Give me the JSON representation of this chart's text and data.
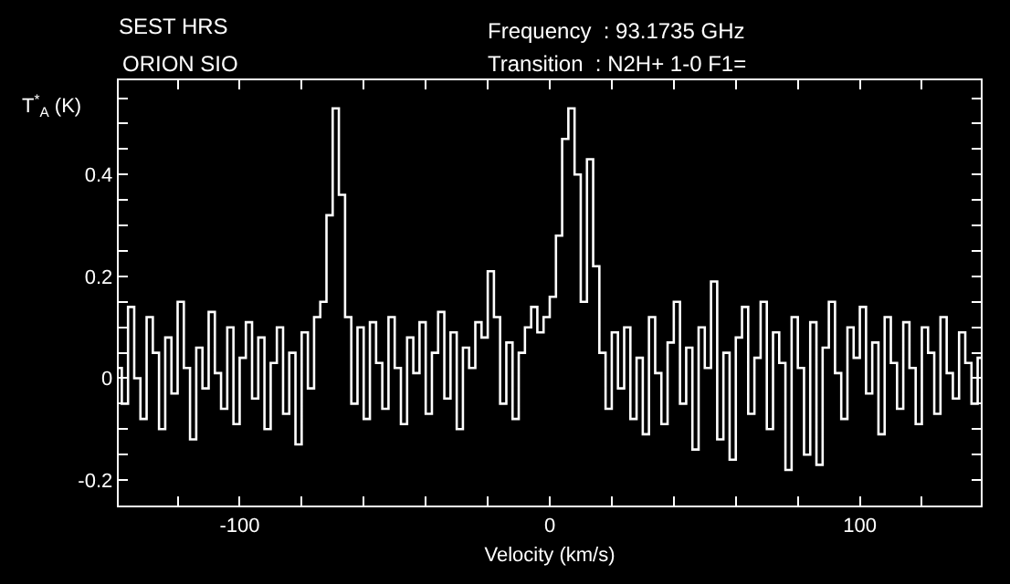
{
  "chart_data": {
    "type": "step",
    "title": "SEST HRS",
    "subtitle": "ORION SIO",
    "annotations": [
      "Frequency  : 93.1735 GHz",
      "Transition  : N2H+ 1-0 F1="
    ],
    "xlabel": "Velocity (km/s)",
    "ylabel": "T$^{*}$$_{A}$ (K)",
    "x": [
      -139,
      -137,
      -135,
      -133,
      -131,
      -129,
      -127,
      -125,
      -123,
      -121,
      -119,
      -117,
      -115,
      -113,
      -111,
      -109,
      -107,
      -105,
      -103,
      -101,
      -99,
      -97,
      -95,
      -93,
      -91,
      -89,
      -87,
      -85,
      -83,
      -81,
      -79,
      -77,
      -75,
      -73,
      -71,
      -69,
      -67,
      -65,
      -63,
      -61,
      -59,
      -57,
      -55,
      -53,
      -51,
      -49,
      -47,
      -45,
      -43,
      -41,
      -39,
      -37,
      -35,
      -33,
      -31,
      -29,
      -27,
      -25,
      -23,
      -21,
      -19,
      -17,
      -15,
      -13,
      -11,
      -9,
      -7,
      -5,
      -3,
      -1,
      1,
      3,
      5,
      7,
      9,
      11,
      13,
      15,
      17,
      19,
      21,
      23,
      25,
      27,
      29,
      31,
      33,
      35,
      37,
      39,
      41,
      43,
      45,
      47,
      49,
      51,
      53,
      55,
      57,
      59,
      61,
      63,
      65,
      67,
      69,
      71,
      73,
      75,
      77,
      79,
      81,
      83,
      85,
      87,
      89,
      91,
      93,
      95,
      97,
      99,
      101,
      103,
      105,
      107,
      109,
      111,
      113,
      115,
      117,
      119,
      121,
      123,
      125,
      127,
      129,
      131,
      133,
      135,
      137,
      139
    ],
    "series": [
      {
        "color": "#ffffff",
        "values": [
          0.02,
          -0.05,
          0.14,
          0.0,
          -0.08,
          0.12,
          0.05,
          -0.1,
          0.08,
          -0.03,
          0.15,
          0.02,
          -0.12,
          0.06,
          -0.02,
          0.13,
          0.01,
          -0.06,
          0.1,
          -0.09,
          0.04,
          0.11,
          -0.04,
          0.08,
          -0.1,
          0.03,
          0.1,
          -0.07,
          0.05,
          -0.13,
          0.09,
          -0.02,
          0.12,
          0.15,
          0.32,
          0.53,
          0.36,
          0.12,
          -0.05,
          0.1,
          -0.08,
          0.11,
          0.03,
          -0.06,
          0.12,
          0.02,
          -0.09,
          0.08,
          0.01,
          0.11,
          -0.07,
          0.05,
          0.13,
          -0.04,
          0.09,
          -0.1,
          0.06,
          0.02,
          0.11,
          0.08,
          0.21,
          0.12,
          -0.05,
          0.07,
          -0.08,
          0.05,
          0.1,
          0.14,
          0.09,
          0.12,
          0.16,
          0.28,
          0.47,
          0.53,
          0.4,
          0.15,
          0.43,
          0.22,
          0.05,
          -0.06,
          0.09,
          -0.02,
          0.1,
          -0.08,
          0.04,
          -0.11,
          0.12,
          0.01,
          -0.09,
          0.07,
          0.15,
          -0.05,
          0.06,
          -0.14,
          0.1,
          0.02,
          0.19,
          -0.12,
          0.05,
          -0.16,
          0.08,
          0.14,
          -0.07,
          0.04,
          0.15,
          -0.1,
          0.09,
          0.03,
          -0.18,
          0.12,
          0.02,
          -0.15,
          0.11,
          -0.17,
          0.06,
          0.15,
          0.01,
          -0.08,
          0.1,
          0.04,
          0.14,
          -0.03,
          0.07,
          -0.11,
          0.12,
          0.03,
          -0.06,
          0.11,
          0.02,
          -0.09,
          0.1,
          0.05,
          -0.07,
          0.12,
          0.01,
          -0.04,
          0.09,
          0.03,
          -0.05,
          0.04
        ]
      }
    ],
    "xlim": [
      -139,
      139
    ],
    "xticks": [
      {
        "value": -120,
        "label": null
      },
      -100,
      {
        "value": -80,
        "label": null
      },
      {
        "value": -60,
        "label": null
      },
      {
        "value": -40,
        "label": null
      },
      {
        "value": -20,
        "label": null
      },
      0,
      {
        "value": 20,
        "label": null
      },
      {
        "value": 40,
        "label": null
      },
      {
        "value": 60,
        "label": null
      },
      {
        "value": 80,
        "label": null
      },
      100,
      {
        "value": 120,
        "label": null
      }
    ],
    "ylim": [
      -0.25,
      0.585
    ],
    "yticks": [
      -0.2,
      {
        "value": -0.15,
        "label": null
      },
      {
        "value": -0.1,
        "label": null
      },
      {
        "value": -0.05,
        "label": null
      },
      0,
      {
        "value": 0.05,
        "label": null
      },
      {
        "value": 0.1,
        "label": null
      },
      {
        "value": 0.15,
        "label": null
      },
      0.2,
      {
        "value": 0.25,
        "label": null
      },
      {
        "value": 0.3,
        "label": null
      },
      {
        "value": 0.35,
        "label": null
      },
      0.4,
      {
        "value": 0.45,
        "label": null
      },
      {
        "value": 0.5,
        "label": null
      },
      {
        "value": 0.55,
        "label": null
      }
    ],
    "marker": "none"
  }
}
